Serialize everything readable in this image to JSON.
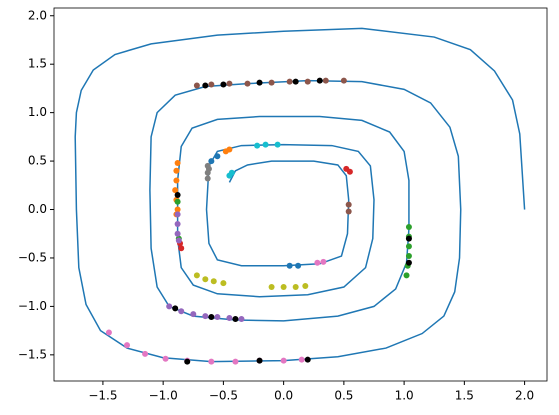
{
  "chart_data": {
    "type": "line",
    "xlim": [
      -1.906,
      2.186
    ],
    "ylim": [
      -1.77,
      2.08
    ],
    "xticks": [
      {
        "value": -1.5,
        "label": "−1.5"
      },
      {
        "value": -1,
        "label": "−1.0"
      },
      {
        "value": -0.5,
        "label": "−0.5"
      },
      {
        "value": 0,
        "label": "0.0"
      },
      {
        "value": 0.5,
        "label": "0.5"
      },
      {
        "value": 1,
        "label": "1.0"
      },
      {
        "value": 1.5,
        "label": "1.5"
      },
      {
        "value": 2,
        "label": "2.0"
      }
    ],
    "yticks": [
      {
        "value": -1.5,
        "label": "−1.5"
      },
      {
        "value": -1,
        "label": "−1.0"
      },
      {
        "value": -0.5,
        "label": "−0.5"
      },
      {
        "value": 0,
        "label": "0.0"
      },
      {
        "value": 0.5,
        "label": "0.5"
      },
      {
        "value": 1,
        "label": "1.0"
      },
      {
        "value": 1.5,
        "label": "1.5"
      },
      {
        "value": 2,
        "label": "2.0"
      }
    ],
    "series": [
      {
        "mode": "line",
        "color": "#1f77b4",
        "x": [
          2.0,
          1.96,
          1.9,
          1.75,
          1.55,
          1.25,
          0.65,
          0.0,
          -0.55,
          -1.1,
          -1.4,
          -1.58,
          -1.68,
          -1.72,
          -1.73,
          -1.72,
          -1.7,
          -1.64,
          -1.52,
          -1.3,
          -1.0,
          -0.6,
          0.0,
          0.45,
          0.85,
          1.15,
          1.33,
          1.42,
          1.46,
          1.47,
          1.45,
          1.38,
          1.22,
          1.0,
          0.65,
          0.2,
          -0.3,
          -0.65,
          -0.9,
          -1.05,
          -1.1,
          -1.11,
          -1.1,
          -1.05,
          -0.95,
          -0.75,
          -0.4,
          0.0,
          0.45,
          0.75,
          0.93,
          1.02,
          1.04,
          1.04,
          1.0,
          0.88,
          0.65,
          0.3,
          -0.2,
          -0.55,
          -0.76,
          -0.85,
          -0.88,
          -0.88,
          -0.85,
          -0.75,
          -0.55,
          -0.2,
          0.2,
          0.5,
          0.68,
          0.74,
          0.75,
          0.72,
          0.62,
          0.4,
          0.0,
          -0.35,
          -0.55,
          -0.62,
          -0.64,
          -0.62,
          -0.55,
          -0.35,
          0.0,
          0.3,
          0.48,
          0.53,
          0.54,
          0.52,
          0.45,
          0.25,
          -0.1,
          -0.3,
          -0.4,
          -0.45
        ],
        "y": [
          0.0,
          0.78,
          1.13,
          1.43,
          1.65,
          1.78,
          1.87,
          1.84,
          1.8,
          1.71,
          1.6,
          1.44,
          1.23,
          1.0,
          0.75,
          0.0,
          -0.6,
          -0.98,
          -1.25,
          -1.43,
          -1.53,
          -1.57,
          -1.56,
          -1.52,
          -1.43,
          -1.28,
          -1.1,
          -0.85,
          -0.5,
          0.0,
          0.55,
          0.85,
          1.1,
          1.24,
          1.32,
          1.33,
          1.3,
          1.27,
          1.18,
          1.0,
          0.75,
          0.2,
          -0.4,
          -0.8,
          -1.0,
          -1.1,
          -1.14,
          -1.15,
          -1.1,
          -1.0,
          -0.82,
          -0.55,
          -0.2,
          0.3,
          0.6,
          0.8,
          0.92,
          0.96,
          0.96,
          0.93,
          0.84,
          0.65,
          0.3,
          -0.3,
          -0.6,
          -0.78,
          -0.87,
          -0.9,
          -0.88,
          -0.8,
          -0.6,
          -0.3,
          0.1,
          0.45,
          0.6,
          0.66,
          0.67,
          0.66,
          0.6,
          0.45,
          0.0,
          -0.35,
          -0.52,
          -0.58,
          -0.58,
          -0.56,
          -0.48,
          -0.25,
          0.1,
          0.35,
          0.46,
          0.5,
          0.5,
          0.46,
          0.4,
          0.28
        ]
      },
      {
        "mode": "markers",
        "color": "#8c564b",
        "x": [
          -0.72,
          -0.6,
          -0.45,
          -0.3,
          -0.1,
          0.05,
          0.2,
          0.35,
          0.5,
          0.54,
          0.54
        ],
        "y": [
          1.28,
          1.29,
          1.3,
          1.3,
          1.31,
          1.32,
          1.32,
          1.33,
          1.33,
          0.05,
          -0.02
        ]
      },
      {
        "mode": "markers",
        "color": "#ff7f0e",
        "x": [
          -0.88,
          -0.89,
          -0.89,
          -0.9,
          -0.89,
          -0.88,
          -0.89,
          -0.45,
          -0.48
        ],
        "y": [
          0.48,
          0.4,
          0.3,
          0.2,
          0.1,
          0.0,
          -0.05,
          0.62,
          0.6
        ]
      },
      {
        "mode": "markers",
        "color": "#2ca02c",
        "x": [
          1.04,
          1.04,
          1.04,
          1.04,
          1.03,
          1.02,
          -0.88,
          -0.87
        ],
        "y": [
          -0.18,
          -0.28,
          -0.38,
          -0.48,
          -0.58,
          -0.68,
          0.08,
          -0.3
        ]
      },
      {
        "mode": "markers",
        "color": "#d62728",
        "x": [
          0.52,
          0.55,
          -0.86,
          -0.85
        ],
        "y": [
          0.42,
          0.39,
          -0.35,
          -0.4
        ]
      },
      {
        "mode": "markers",
        "color": "#9467bd",
        "x": [
          -0.88,
          -0.88,
          -0.88,
          -0.87,
          -0.95,
          -0.85,
          -0.75,
          -0.65,
          -0.55,
          -0.45,
          -0.35
        ],
        "y": [
          -0.05,
          -0.15,
          -0.25,
          -0.32,
          -1.0,
          -1.05,
          -1.08,
          -1.1,
          -1.11,
          -1.12,
          -1.13
        ]
      },
      {
        "mode": "markers",
        "color": "#e377c2",
        "x": [
          -1.45,
          -1.3,
          -1.15,
          -0.98,
          -0.8,
          -0.6,
          -0.4,
          -0.2,
          0.0,
          0.15,
          0.28,
          0.33
        ],
        "y": [
          -1.27,
          -1.4,
          -1.49,
          -1.54,
          -1.56,
          -1.57,
          -1.57,
          -1.56,
          -1.56,
          -1.55,
          -0.55,
          -0.54
        ]
      },
      {
        "mode": "markers",
        "color": "#7f7f7f",
        "x": [
          -0.63,
          -0.63,
          -0.63,
          -0.62
        ],
        "y": [
          0.45,
          0.38,
          0.32,
          0.42
        ]
      },
      {
        "mode": "markers",
        "color": "#bcbd22",
        "x": [
          -0.72,
          -0.65,
          -0.58,
          -0.5,
          -0.1,
          0.0,
          0.1,
          0.18
        ],
        "y": [
          -0.68,
          -0.72,
          -0.74,
          -0.76,
          -0.8,
          -0.8,
          -0.8,
          -0.79
        ]
      },
      {
        "mode": "markers",
        "color": "#17becf",
        "x": [
          -0.22,
          -0.15,
          -0.05,
          -0.45,
          -0.43
        ],
        "y": [
          0.66,
          0.67,
          0.67,
          0.35,
          0.38
        ]
      },
      {
        "mode": "markers",
        "color": "#1f77b4",
        "x": [
          -0.6,
          -0.55,
          0.05,
          0.12
        ],
        "y": [
          0.5,
          0.55,
          -0.58,
          -0.58
        ]
      },
      {
        "mode": "markers",
        "color": "#000000",
        "x": [
          -0.65,
          -0.5,
          -0.2,
          0.1,
          0.3,
          1.04,
          1.04,
          -0.88,
          -0.9,
          -0.6,
          -0.4,
          -0.8,
          -0.2,
          0.2
        ],
        "y": [
          1.28,
          1.29,
          1.31,
          1.32,
          1.33,
          -0.3,
          -0.55,
          0.15,
          -1.02,
          -1.11,
          -1.13,
          -1.57,
          -1.56,
          -1.55
        ]
      }
    ]
  }
}
